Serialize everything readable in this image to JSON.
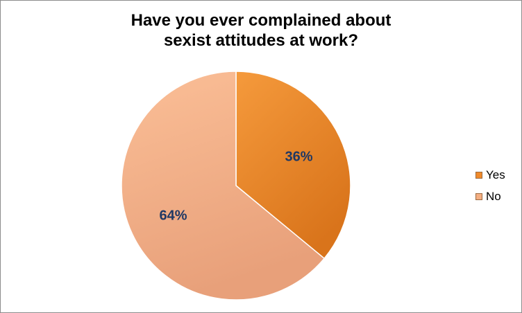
{
  "chart_data": {
    "type": "pie",
    "title_lines": [
      "Have you ever complained about",
      "sexist attitudes at work?"
    ],
    "categories": [
      "Yes",
      "No"
    ],
    "values": [
      36,
      64
    ],
    "data_labels": [
      "36%",
      "64%"
    ],
    "colors": [
      "#f08a2a",
      "#f4ae82"
    ],
    "legend_position": "right"
  }
}
